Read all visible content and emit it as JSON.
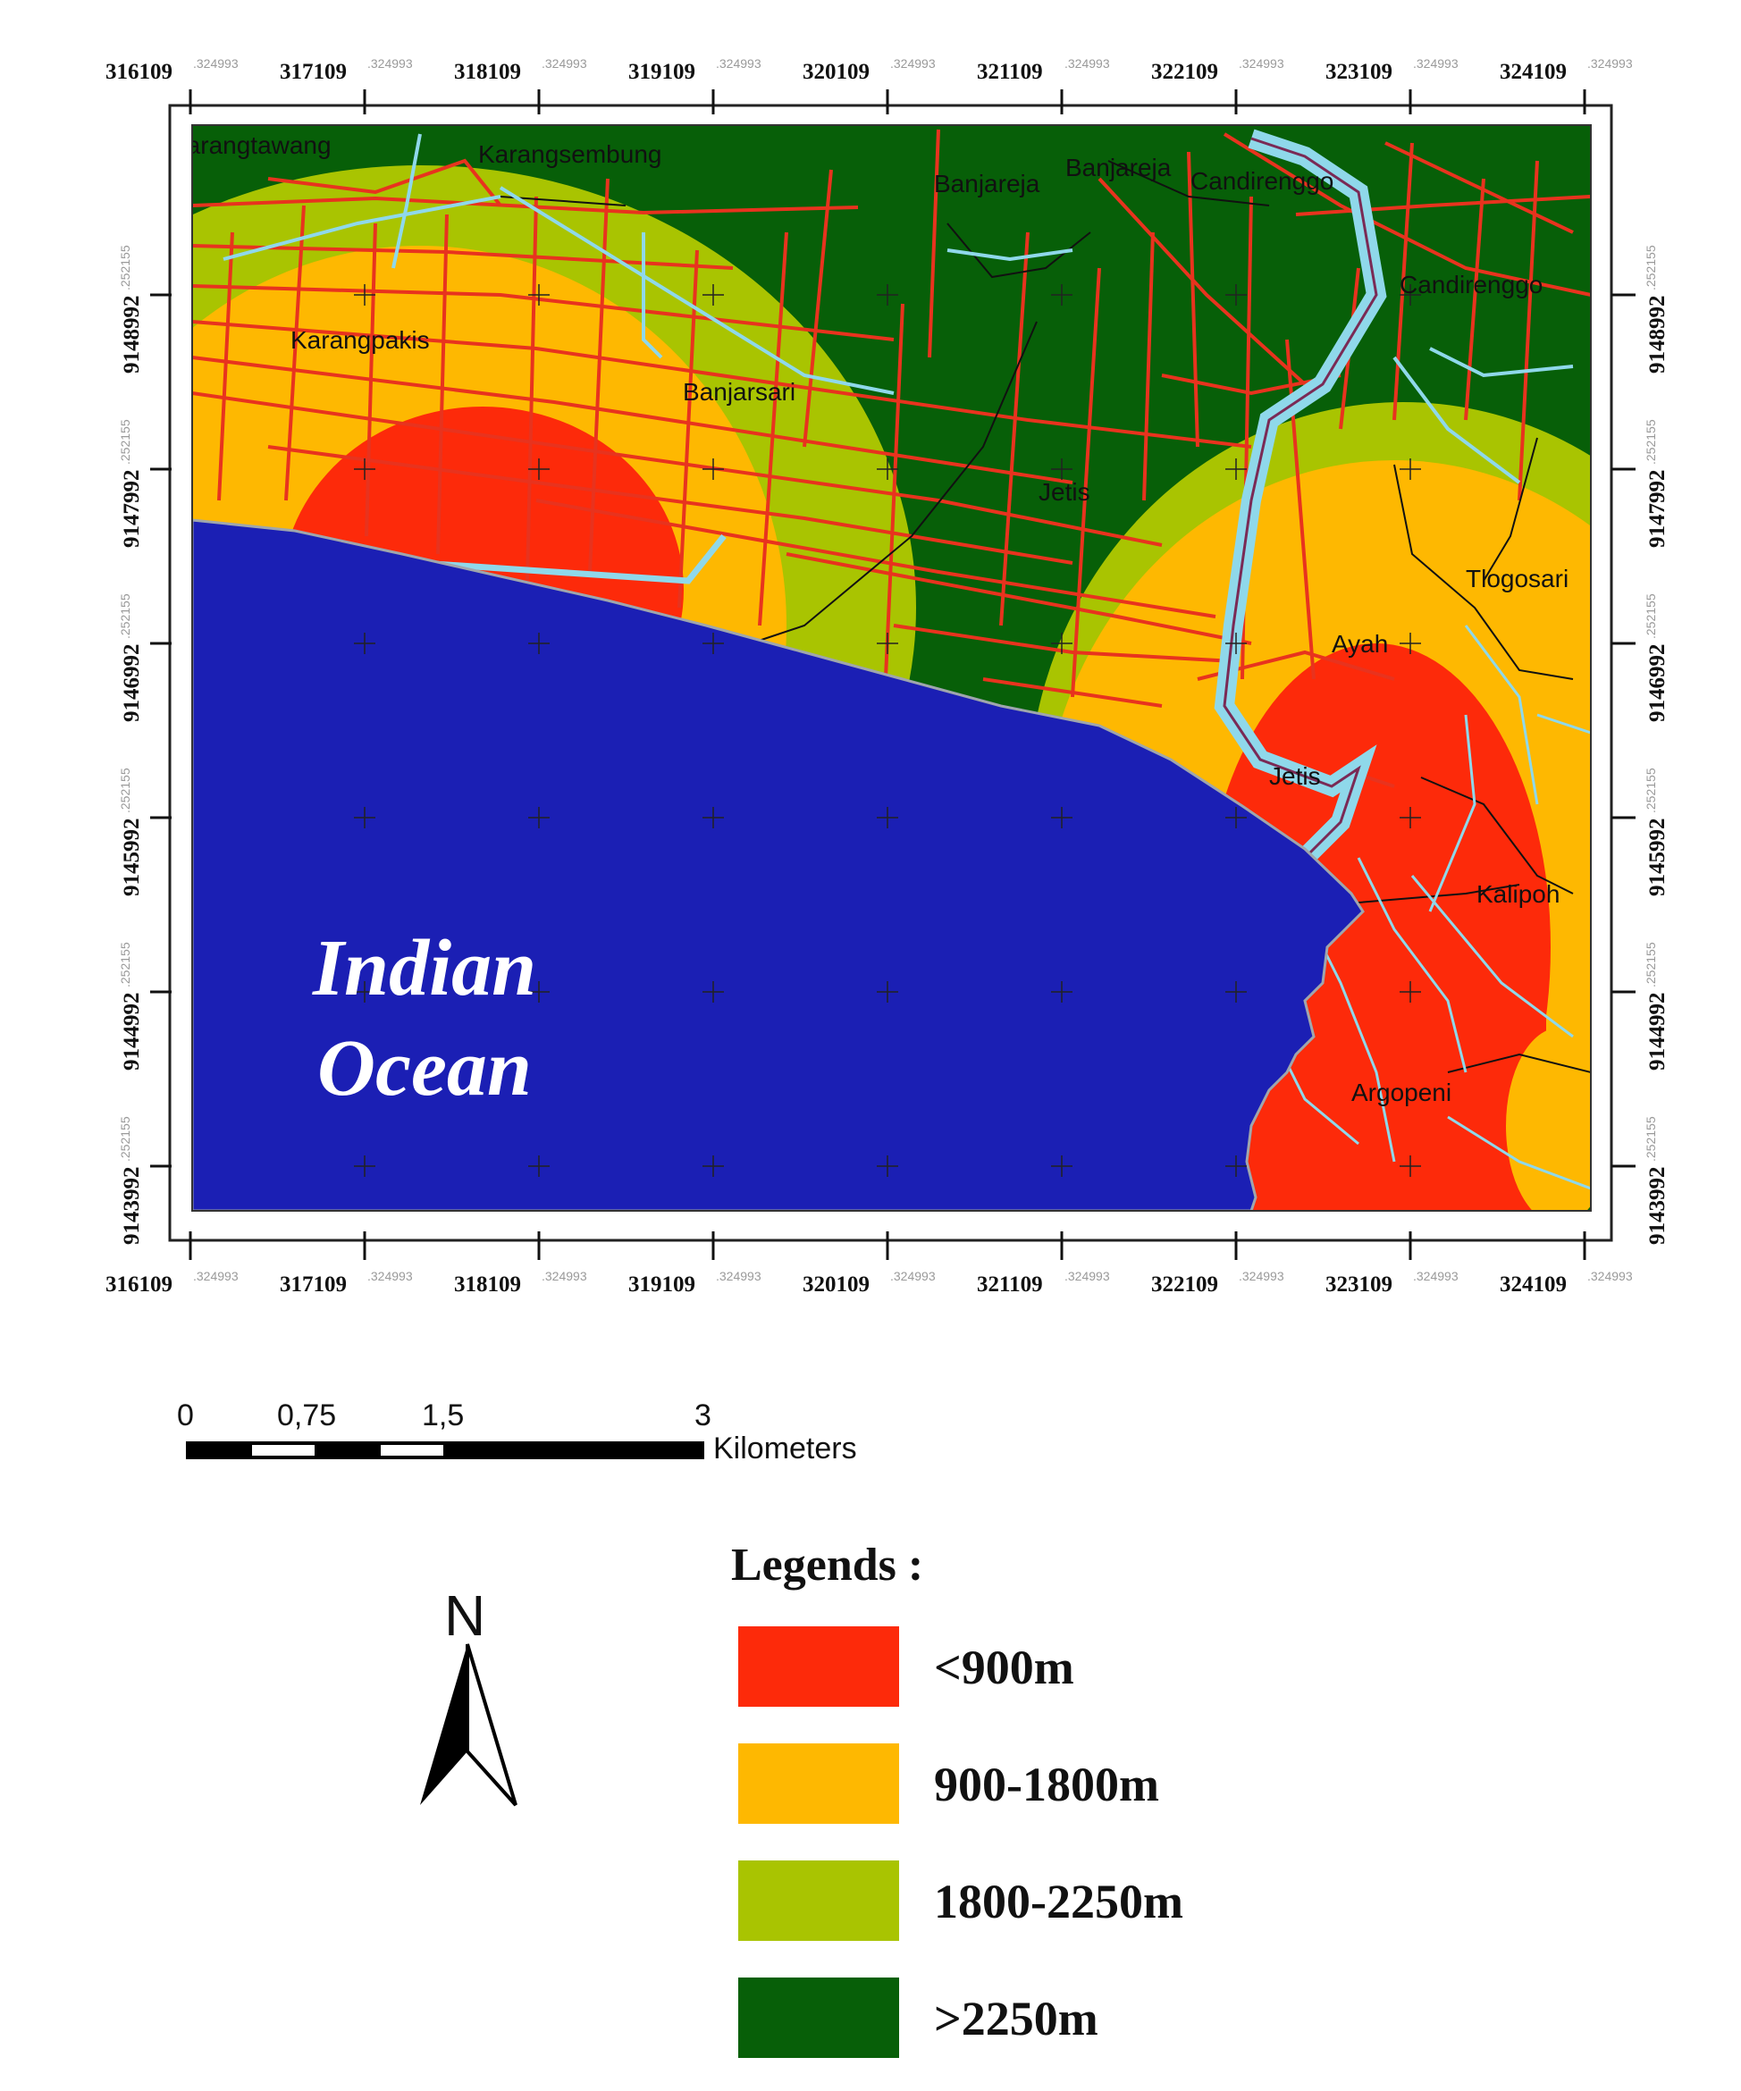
{
  "colors": {
    "ocean": "#1b1fb4",
    "zone_lt900": "#fd2a0a",
    "zone_900_1800": "#feb801",
    "zone_1800_2250": "#a9c401",
    "zone_gt2250": "#075f08",
    "road": "#e8331e",
    "river": "#8fd8ea",
    "boundary": "#111111"
  },
  "map": {
    "x_ticks": [
      "316109",
      "317109",
      "318109",
      "319109",
      "320109",
      "321109",
      "322109",
      "323109",
      "324109"
    ],
    "x_tick_suffix": ".324993",
    "y_ticks": [
      "9148992",
      "9147992",
      "9146992",
      "9145992",
      "9144992",
      "9143992"
    ],
    "y_tick_suffix": ".252155",
    "ocean_label_line1": "Indian",
    "ocean_label_line2": "Ocean",
    "places": [
      "Karangtawang",
      "Karangsembung",
      "Banjareja",
      "Banjareja",
      "Candirenggo",
      "Candirenggo",
      "Karangpakis",
      "Banjarsari",
      "Jetis",
      "Tlogosari",
      "Ayah",
      "Jetis",
      "Kalipoh",
      "Argopeni"
    ]
  },
  "scale_bar": {
    "labels": [
      "0",
      "0,75",
      "1,5",
      "3"
    ],
    "unit": "Kilometers"
  },
  "north_arrow": {
    "label": "N"
  },
  "legend": {
    "title": "Legends :",
    "items": [
      {
        "label": "<900m",
        "color": "#fd2a0a"
      },
      {
        "label": "900-1800m",
        "color": "#feb801"
      },
      {
        "label": "1800-2250m",
        "color": "#a9c401"
      },
      {
        "label": ">2250m",
        "color": "#075f08"
      }
    ]
  }
}
